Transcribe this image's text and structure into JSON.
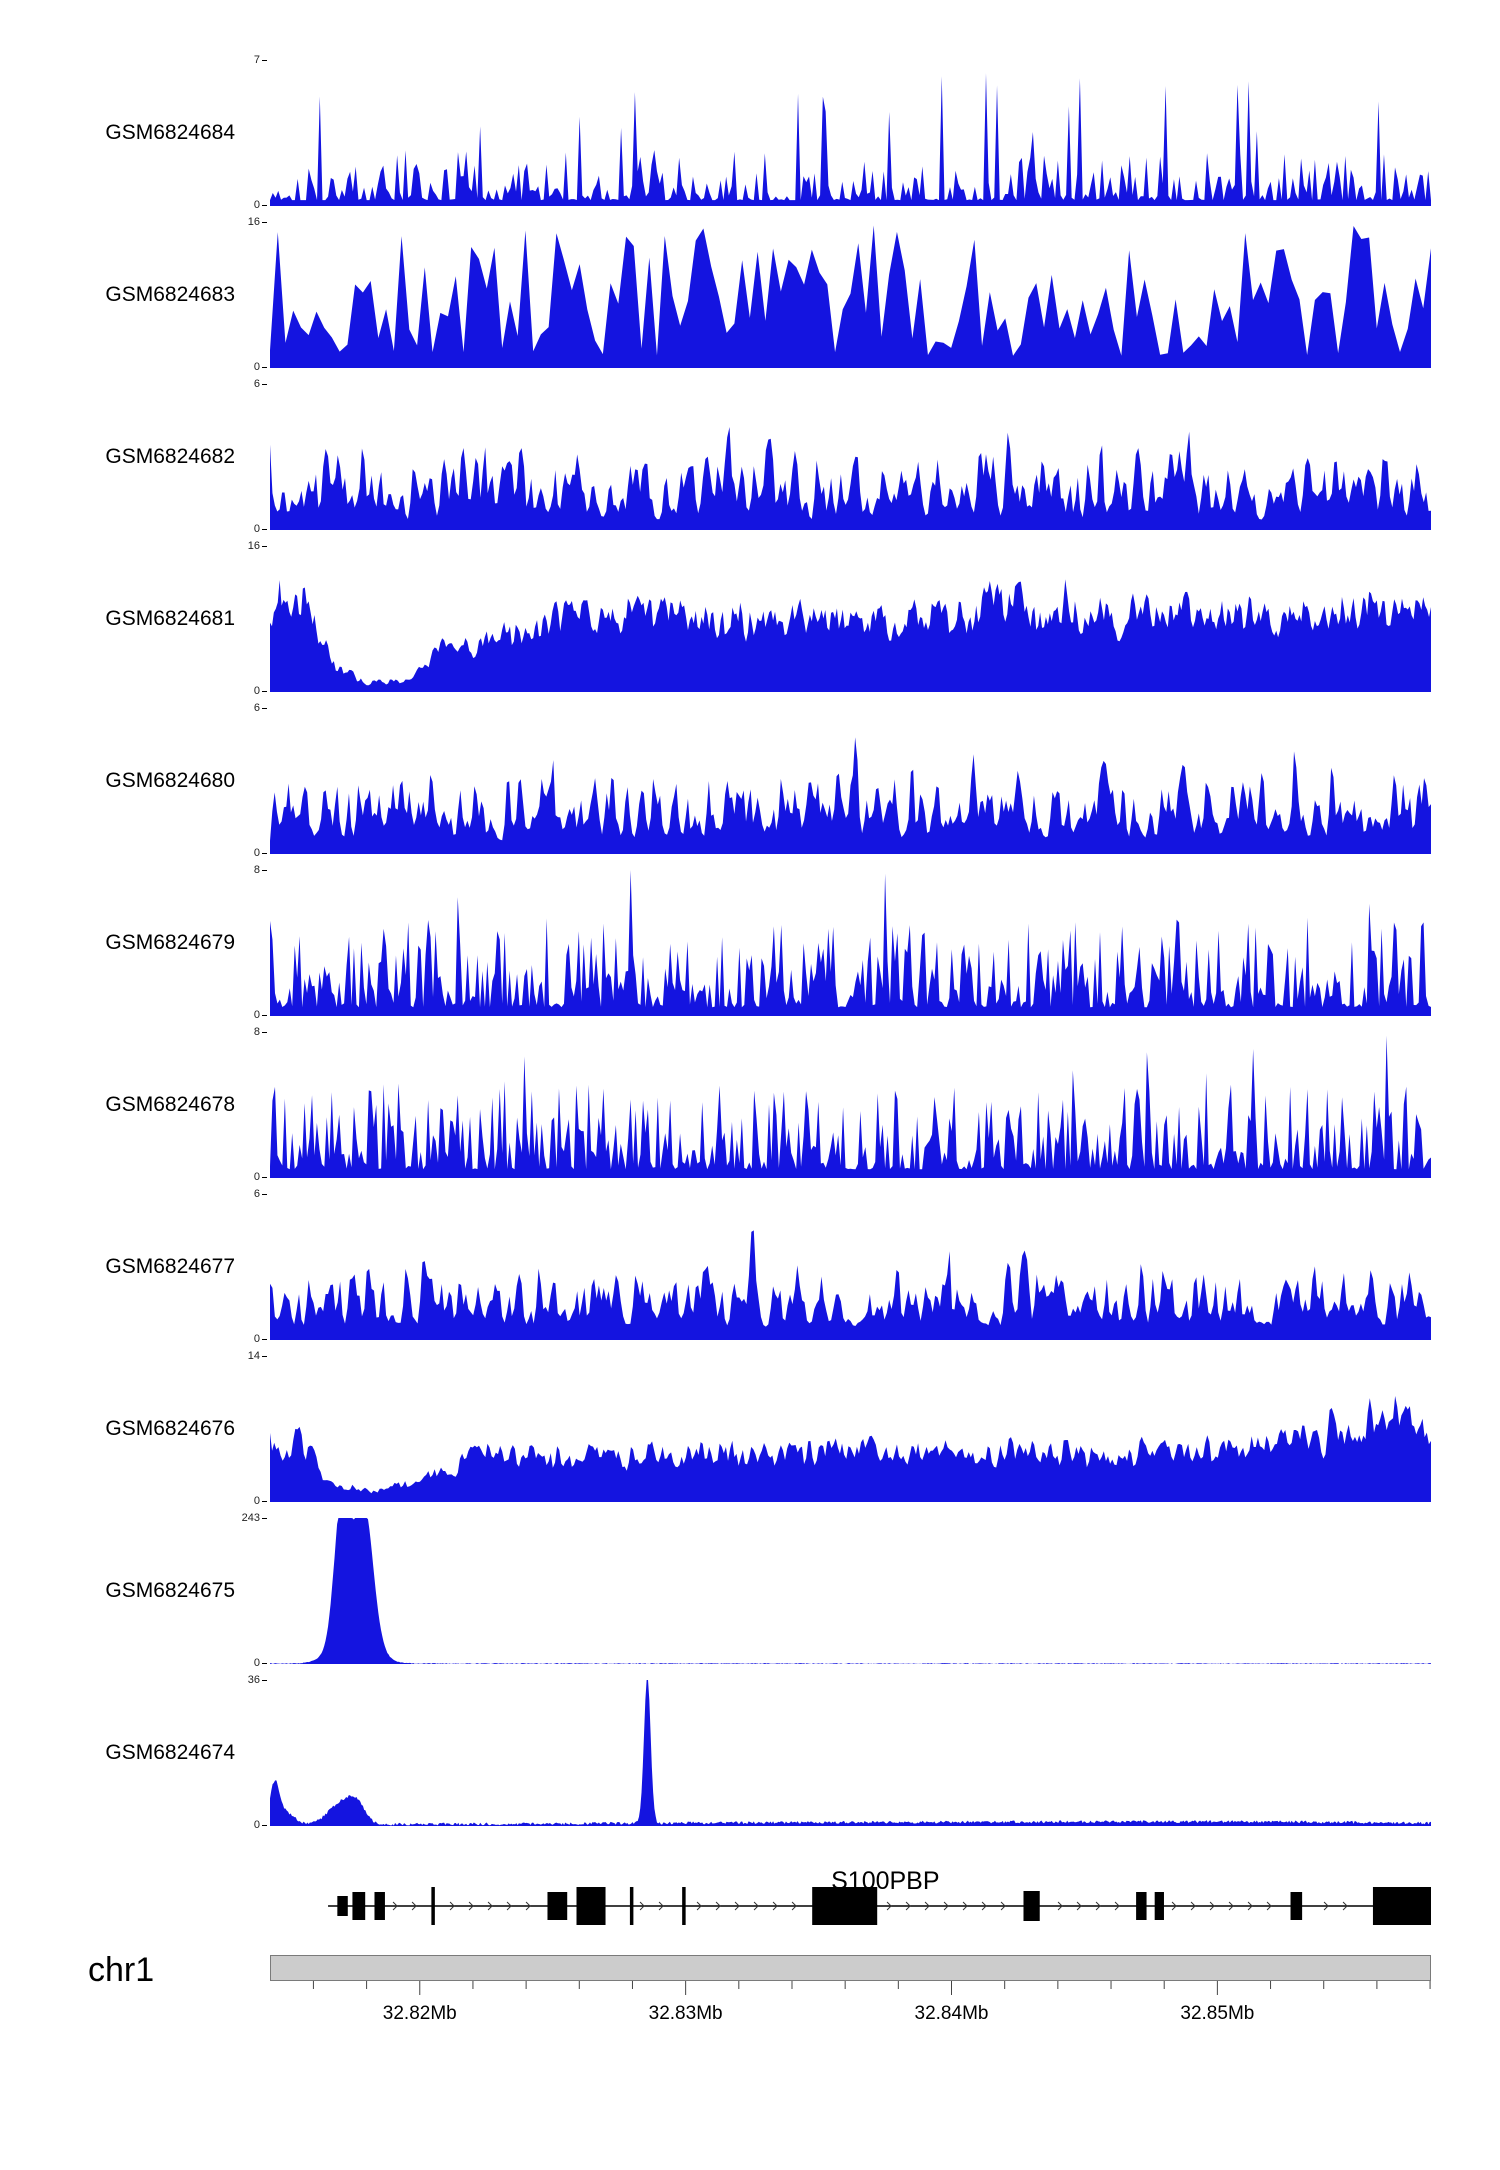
{
  "colors": {
    "signal": "#1414e0",
    "axis_text": "#222222",
    "gene": "#000000",
    "chromosome_bar_fill": "#cccccc",
    "chromosome_bar_border": "#7a7a7a",
    "tick": "#444444"
  },
  "chart_data": {
    "type": "area",
    "title": "",
    "description": "Genome browser read-coverage tracks over chr1 around gene S100PBP",
    "x_axis": {
      "unit": "Mb",
      "range_mb": [
        32.8143,
        32.8564
      ],
      "major_ticks": [
        {
          "label": "32.82Mb",
          "f": 0.129
        },
        {
          "label": "32.83Mb",
          "f": 0.358
        },
        {
          "label": "32.84Mb",
          "f": 0.587
        },
        {
          "label": "32.85Mb",
          "f": 0.816
        }
      ],
      "minor_tick_spacing_f": 0.0458
    },
    "y_axis_min_label": "0",
    "tracks": [
      {
        "label": "GSM6824684",
        "ymax": 7,
        "ymin": 0,
        "signal": {
          "kind": "noise",
          "seed": 101,
          "n": 420,
          "base": 0.04,
          "amp": 0.35,
          "power": 3.2,
          "spike_prob": 0.055,
          "spike_amp": 0.85,
          "smooth": 0,
          "envelope": [
            [
              0,
              1
            ],
            [
              1,
              1
            ]
          ]
        }
      },
      {
        "label": "GSM6824683",
        "ymax": 16,
        "ymin": 0,
        "signal": {
          "kind": "noise",
          "seed": 202,
          "n": 150,
          "base": 0.08,
          "amp": 0.9,
          "power": 1.5,
          "spike_prob": 0,
          "spike_amp": 0,
          "smooth": 0,
          "envelope": [
            [
              0,
              1
            ],
            [
              1,
              1
            ]
          ]
        }
      },
      {
        "label": "GSM6824682",
        "ymax": 6,
        "ymin": 0,
        "signal": {
          "kind": "noise",
          "seed": 303,
          "n": 480,
          "base": 0.06,
          "amp": 0.6,
          "power": 1.9,
          "spike_prob": 0.03,
          "spike_amp": 0.45,
          "smooth": 1,
          "envelope": [
            [
              0,
              1
            ],
            [
              1,
              1
            ]
          ]
        }
      },
      {
        "label": "GSM6824681",
        "ymax": 16,
        "ymin": 0,
        "signal": {
          "kind": "noise",
          "seed": 404,
          "n": 600,
          "base": 0.4,
          "amp": 0.5,
          "power": 1.1,
          "spike_prob": 0.02,
          "spike_amp": 0.3,
          "smooth": 1,
          "envelope": [
            [
              0,
              0.85
            ],
            [
              0.03,
              0.92
            ],
            [
              0.055,
              0.3
            ],
            [
              0.08,
              0.1
            ],
            [
              0.12,
              0.12
            ],
            [
              0.15,
              0.45
            ],
            [
              0.2,
              0.6
            ],
            [
              0.27,
              0.8
            ],
            [
              0.45,
              0.8
            ],
            [
              0.6,
              0.78
            ],
            [
              0.63,
              1.0
            ],
            [
              0.66,
              0.85
            ],
            [
              0.8,
              0.8
            ],
            [
              1,
              0.9
            ]
          ]
        }
      },
      {
        "label": "GSM6824680",
        "ymax": 6,
        "ymin": 0,
        "signal": {
          "kind": "noise",
          "seed": 505,
          "n": 500,
          "base": 0.09,
          "amp": 0.62,
          "power": 2.0,
          "spike_prob": 0.04,
          "spike_amp": 0.45,
          "smooth": 1,
          "envelope": [
            [
              0,
              1
            ],
            [
              1,
              1
            ]
          ]
        }
      },
      {
        "label": "GSM6824679",
        "ymax": 8,
        "ymin": 0,
        "signal": {
          "kind": "noise",
          "seed": 606,
          "n": 470,
          "base": 0.06,
          "amp": 0.6,
          "power": 2.3,
          "spike_prob": 0.05,
          "spike_amp": 0.55,
          "smooth": 0,
          "envelope": [
            [
              0,
              1
            ],
            [
              1,
              1
            ]
          ]
        }
      },
      {
        "label": "GSM6824678",
        "ymax": 8,
        "ymin": 0,
        "signal": {
          "kind": "noise",
          "seed": 707,
          "n": 470,
          "base": 0.06,
          "amp": 0.6,
          "power": 2.2,
          "spike_prob": 0.05,
          "spike_amp": 0.55,
          "smooth": 0,
          "envelope": [
            [
              0,
              1
            ],
            [
              1,
              1
            ]
          ]
        }
      },
      {
        "label": "GSM6824677",
        "ymax": 6,
        "ymin": 0,
        "signal": {
          "kind": "noise",
          "seed": 808,
          "n": 480,
          "base": 0.08,
          "amp": 0.58,
          "power": 2.0,
          "spike_prob": 0.035,
          "spike_amp": 0.5,
          "smooth": 1,
          "envelope": [
            [
              0,
              1
            ],
            [
              1,
              1
            ]
          ]
        }
      },
      {
        "label": "GSM6824676",
        "ymax": 14,
        "ymin": 0,
        "signal": {
          "kind": "noise",
          "seed": 909,
          "n": 550,
          "base": 0.35,
          "amp": 0.5,
          "power": 1.2,
          "spike_prob": 0.02,
          "spike_amp": 0.3,
          "smooth": 1,
          "envelope": [
            [
              0,
              0.6
            ],
            [
              0.02,
              0.75
            ],
            [
              0.05,
              0.25
            ],
            [
              0.09,
              0.1
            ],
            [
              0.13,
              0.3
            ],
            [
              0.18,
              0.55
            ],
            [
              0.3,
              0.55
            ],
            [
              0.55,
              0.6
            ],
            [
              0.75,
              0.55
            ],
            [
              0.88,
              0.7
            ],
            [
              0.97,
              1.0
            ],
            [
              1,
              0.9
            ]
          ]
        }
      },
      {
        "label": "GSM6824675",
        "ymax": 243,
        "ymin": 0,
        "signal": {
          "kind": "peaks",
          "seed": 111,
          "n": 900,
          "noise": 0.006,
          "peaks": [
            {
              "x": 0.062,
              "w": 0.009,
              "h": 0.97
            },
            {
              "x": 0.081,
              "w": 0.011,
              "h": 0.89
            },
            {
              "x": 0.072,
              "w": 0.022,
              "h": 0.25
            }
          ]
        }
      },
      {
        "label": "GSM6824674",
        "ymax": 36,
        "ymin": 0,
        "signal": {
          "kind": "peaks",
          "seed": 222,
          "n": 900,
          "noise": 0.02,
          "peaks": [
            {
              "x": 0.004,
              "w": 0.006,
              "h": 0.27
            },
            {
              "x": 0.014,
              "w": 0.01,
              "h": 0.08
            },
            {
              "x": 0.062,
              "w": 0.016,
              "h": 0.15
            },
            {
              "x": 0.075,
              "w": 0.01,
              "h": 0.1
            },
            {
              "x": 0.325,
              "w": 0.004,
              "h": 1.0
            },
            {
              "x": 0.52,
              "w": 0.3,
              "h": 0.015
            },
            {
              "x": 0.85,
              "w": 0.2,
              "h": 0.015
            }
          ]
        }
      }
    ],
    "gene": {
      "name": "S100PBP",
      "strand": "+",
      "line_start_f": 0.05,
      "line_end_f": 1.0,
      "exons": [
        {
          "x": 0.058,
          "w": 0.009,
          "h": 20
        },
        {
          "x": 0.071,
          "w": 0.011,
          "h": 28
        },
        {
          "x": 0.09,
          "w": 0.009,
          "h": 28
        },
        {
          "x": 0.139,
          "w": 0.003,
          "h": 38
        },
        {
          "x": 0.239,
          "w": 0.017,
          "h": 28
        },
        {
          "x": 0.264,
          "w": 0.025,
          "h": 38
        },
        {
          "x": 0.31,
          "w": 0.003,
          "h": 38
        },
        {
          "x": 0.355,
          "w": 0.003,
          "h": 38
        },
        {
          "x": 0.467,
          "w": 0.056,
          "h": 38
        },
        {
          "x": 0.649,
          "w": 0.014,
          "h": 30
        },
        {
          "x": 0.746,
          "w": 0.009,
          "h": 28
        },
        {
          "x": 0.762,
          "w": 0.008,
          "h": 28
        },
        {
          "x": 0.879,
          "w": 0.01,
          "h": 28
        },
        {
          "x": 0.95,
          "w": 0.05,
          "h": 38
        }
      ]
    },
    "chromosome": {
      "name": "chr1"
    }
  }
}
